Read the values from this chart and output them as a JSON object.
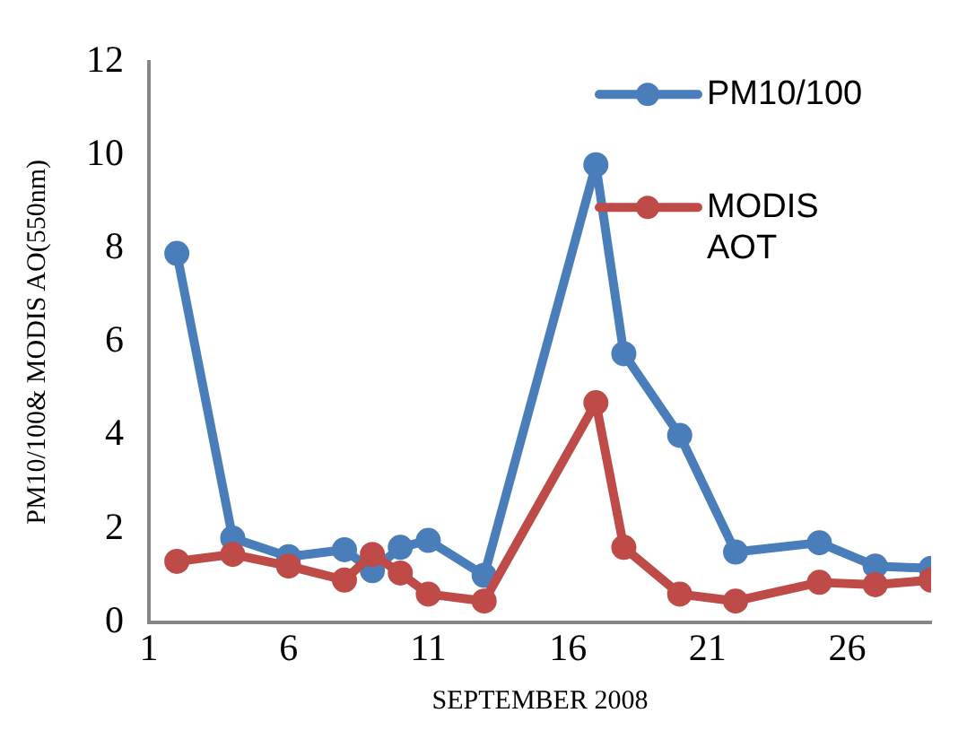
{
  "chart_data": {
    "type": "line",
    "xlabel": "SEPTEMBER 2008",
    "ylabel": "PM10/100& MODIS AO(550nm)",
    "x": [
      2,
      4,
      6,
      8,
      9,
      10,
      11,
      13,
      17,
      18,
      20,
      22,
      25,
      27,
      29
    ],
    "series": [
      {
        "name": "PM10/100",
        "color": "#4a7ebb",
        "values": [
          7.9,
          1.8,
          1.4,
          1.55,
          1.1,
          1.6,
          1.75,
          1.0,
          9.8,
          5.75,
          4.0,
          1.5,
          1.7,
          1.2,
          1.15
        ]
      },
      {
        "name": "MODIS AOT",
        "color": "#be4b48",
        "values": [
          1.3,
          1.45,
          1.2,
          0.9,
          1.45,
          1.05,
          0.6,
          0.45,
          4.7,
          1.6,
          0.6,
          0.45,
          0.85,
          0.8,
          0.9
        ]
      }
    ],
    "xlim": [
      1,
      29
    ],
    "xticks": [
      1,
      6,
      11,
      16,
      21,
      26
    ],
    "ylim": [
      0,
      12
    ],
    "yticks": [
      0,
      2,
      4,
      6,
      8,
      10,
      12
    ],
    "grid": false,
    "legend": "top right",
    "marker": "circle",
    "line_style": "solid"
  }
}
